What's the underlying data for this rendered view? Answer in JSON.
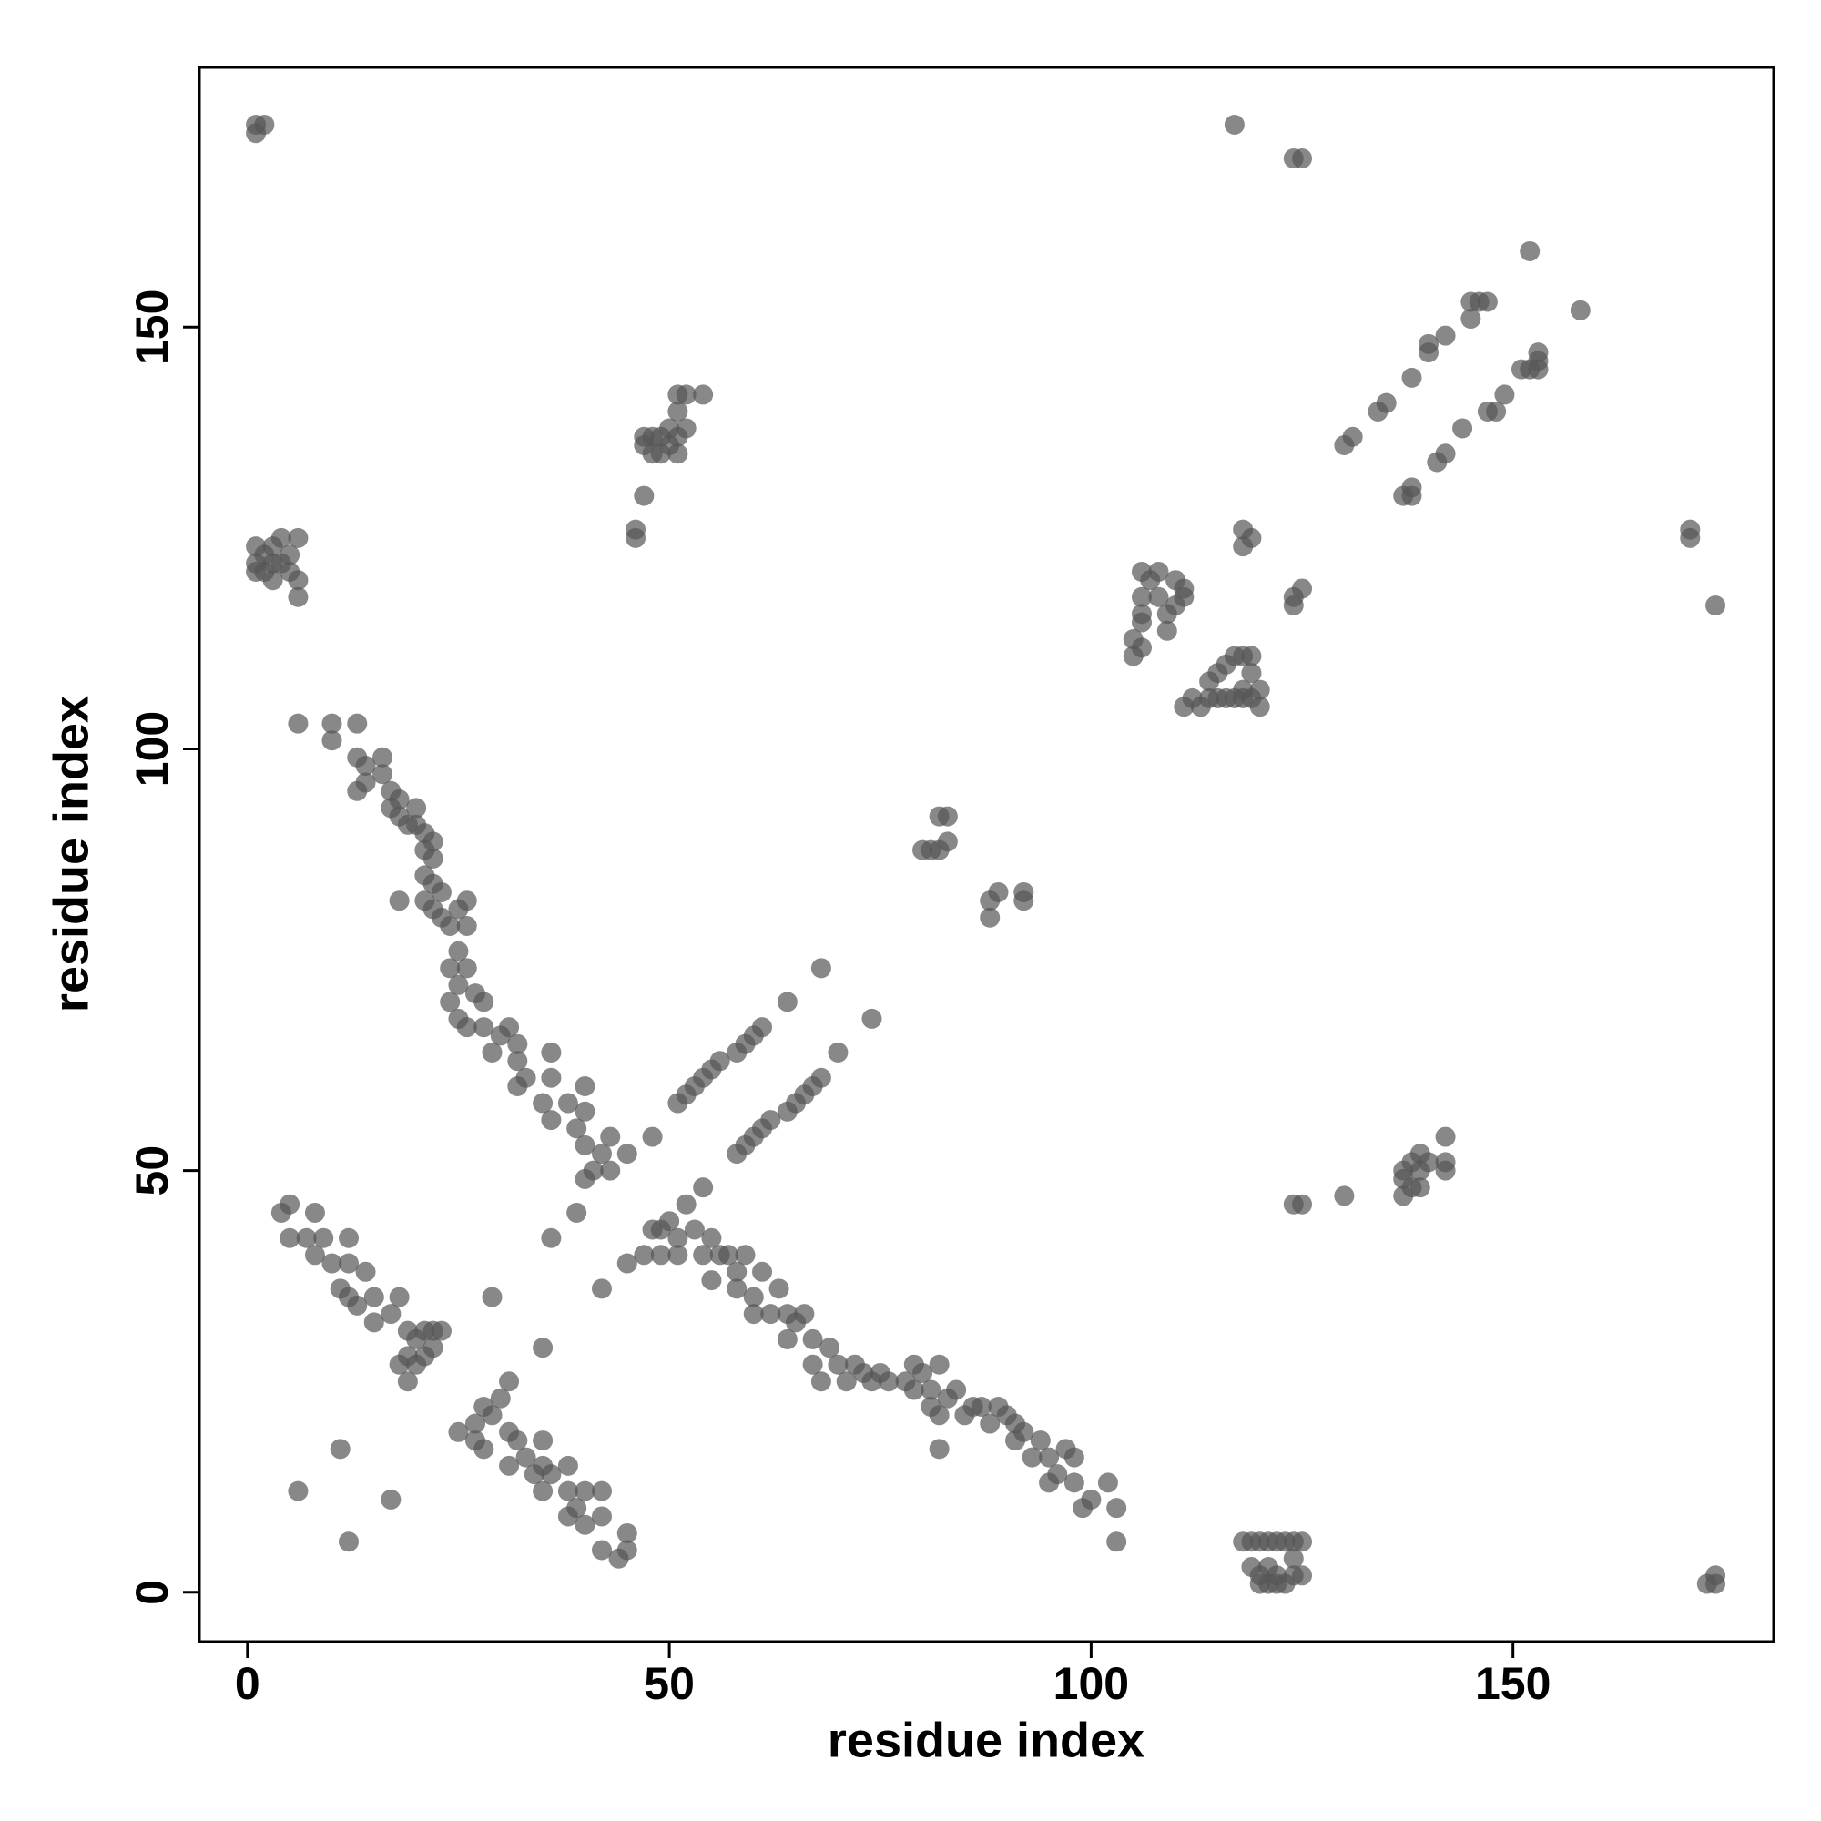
{
  "chart_data": {
    "type": "scatter",
    "x_label": "residue index",
    "y_label": "residue index",
    "xlim": [
      -5.7,
      180.9
    ],
    "ylim": [
      -5.85,
      180.8
    ],
    "xticks": [
      0,
      50,
      100,
      150
    ],
    "yticks": [
      0,
      50,
      100,
      150
    ],
    "grid": false,
    "x": [
      1,
      2,
      1,
      1,
      1,
      2,
      2,
      3,
      3,
      4,
      4,
      5,
      5,
      6,
      6,
      6,
      1,
      3,
      6,
      10,
      10,
      13,
      13,
      14,
      14,
      13,
      16,
      16,
      17,
      17,
      18,
      18,
      19,
      20,
      20,
      21,
      21,
      22,
      22,
      21,
      22,
      21,
      22,
      23,
      23,
      24,
      25,
      26,
      26,
      25,
      26,
      24,
      25,
      24,
      25,
      26,
      27,
      28,
      28,
      29,
      30,
      31,
      32,
      32,
      32,
      33,
      36,
      35,
      36,
      38,
      39,
      40,
      40,
      41,
      40,
      42,
      43,
      43,
      45,
      18,
      36,
      40,
      4,
      5,
      5,
      7,
      8,
      8,
      9,
      10,
      12,
      12,
      11,
      12,
      14,
      13,
      15,
      15,
      17,
      18,
      19,
      19,
      20,
      21,
      22,
      23,
      21,
      20,
      22,
      18,
      19,
      25,
      27,
      28,
      27,
      29,
      30,
      31,
      31,
      32,
      31,
      33,
      34,
      35,
      35,
      35,
      36,
      38,
      38,
      39,
      40,
      38,
      40,
      42,
      42,
      42,
      45,
      45,
      44,
      28,
      11,
      6,
      17,
      12,
      29,
      35,
      36,
      39,
      42,
      45,
      48,
      54,
      48,
      49,
      50,
      51,
      52,
      51,
      53,
      54,
      55,
      55,
      56,
      57,
      58,
      58,
      59,
      60,
      60,
      61,
      62,
      63,
      64,
      64,
      65,
      66,
      67,
      67,
      68,
      69,
      70,
      71,
      72,
      73,
      74,
      75,
      76,
      78,
      79,
      79,
      80,
      81,
      81,
      82,
      82,
      83,
      84,
      85,
      86,
      87,
      88,
      89,
      90,
      91,
      91,
      92,
      93,
      94,
      95,
      95,
      96,
      97,
      98,
      98,
      99,
      100,
      102,
      103,
      103,
      82,
      47,
      49,
      51,
      52,
      53,
      54,
      55,
      56,
      58,
      59,
      60,
      61,
      64,
      68,
      58,
      59,
      60,
      61,
      62,
      64,
      65,
      66,
      67,
      68,
      70,
      74,
      46,
      46,
      47,
      47,
      47,
      48,
      48,
      49,
      50,
      50,
      51,
      51,
      52,
      51,
      52,
      54,
      49,
      51,
      80,
      81,
      82,
      83,
      82,
      83,
      88,
      89,
      88,
      92,
      92,
      105,
      105,
      106,
      106,
      106,
      107,
      106,
      108,
      108,
      109,
      110,
      110,
      111,
      111,
      109,
      106,
      111,
      112,
      113,
      114,
      115,
      116,
      117,
      118,
      119,
      120,
      120,
      118,
      115,
      116,
      117,
      118,
      119,
      119,
      114,
      117,
      124,
      125,
      118,
      119,
      118,
      124,
      125,
      124,
      130,
      131,
      134,
      135,
      138,
      140,
      140,
      142,
      145,
      145,
      146,
      147,
      152,
      158,
      137,
      138,
      138,
      141,
      142,
      144,
      147,
      148,
      149,
      151,
      152,
      153,
      153,
      153,
      171,
      171,
      174,
      124,
      125,
      130,
      137,
      137,
      137,
      138,
      138,
      139,
      139,
      140,
      142,
      142,
      142,
      139,
      118,
      119,
      120,
      121,
      122,
      123,
      124,
      125,
      119,
      120,
      120,
      121,
      122,
      122,
      123,
      124,
      125,
      124,
      121,
      173,
      174,
      174
    ],
    "series": [
      {
        "color": "#555555",
        "alpha": 0.7,
        "values": [
          174,
          174,
          173,
          122,
          121,
          123,
          121,
          120,
          124,
          122,
          125,
          123,
          121,
          125,
          120,
          118,
          124,
          122,
          103,
          103,
          101,
          103,
          99,
          98,
          96,
          95,
          99,
          97,
          95,
          93,
          94,
          92,
          91,
          93,
          91,
          90,
          88,
          89,
          87,
          85,
          84,
          82,
          81,
          83,
          80,
          79,
          81,
          82,
          79,
          76,
          74,
          74,
          72,
          70,
          68,
          67,
          71,
          70,
          67,
          64,
          66,
          67,
          65,
          63,
          60,
          61,
          61,
          58,
          56,
          58,
          55,
          57,
          53,
          50,
          49,
          52,
          54,
          50,
          52,
          82,
          64,
          60,
          45,
          46,
          42,
          42,
          45,
          40,
          42,
          39,
          42,
          39,
          36,
          35,
          38,
          34,
          35,
          32,
          33,
          35,
          31,
          28,
          30,
          31,
          31,
          31,
          28,
          27,
          29,
          27,
          25,
          19,
          20,
          22,
          18,
          21,
          23,
          25,
          19,
          18,
          15,
          16,
          14,
          15,
          18,
          12,
          14,
          15,
          12,
          10,
          12,
          9,
          8,
          9,
          5,
          12,
          7,
          5,
          4,
          17,
          17,
          12,
          11,
          6,
          35,
          29,
          42,
          45,
          36,
          39,
          54,
          48,
          43,
          43,
          44,
          42,
          46,
          40,
          43,
          40,
          42,
          37,
          40,
          40,
          38,
          36,
          40,
          35,
          33,
          38,
          33,
          36,
          33,
          30,
          32,
          33,
          30,
          27,
          25,
          29,
          27,
          25,
          27,
          26,
          25,
          26,
          25,
          25,
          27,
          24,
          26,
          24,
          22,
          27,
          21,
          23,
          24,
          21,
          22,
          22,
          20,
          22,
          21,
          20,
          18,
          19,
          16,
          18,
          16,
          13,
          14,
          17,
          16,
          13,
          10,
          11,
          13,
          10,
          6,
          17,
          40,
          40,
          58,
          59,
          60,
          61,
          62,
          63,
          64,
          65,
          66,
          67,
          70,
          74,
          52,
          53,
          54,
          55,
          56,
          57,
          58,
          59,
          60,
          61,
          64,
          68,
          126,
          125,
          130,
          136,
          137,
          137,
          135,
          137,
          136,
          138,
          137,
          140,
          138,
          142,
          142,
          142,
          135,
          135,
          88,
          88,
          88,
          89,
          92,
          92,
          82,
          83,
          80,
          83,
          82,
          111,
          113,
          112,
          115,
          118,
          120,
          121,
          121,
          118,
          116,
          117,
          120,
          118,
          119,
          114,
          116,
          105,
          106,
          105,
          106,
          106,
          106,
          106,
          106,
          106,
          105,
          107,
          107,
          109,
          110,
          111,
          111,
          111,
          109,
          108,
          174,
          170,
          170,
          124,
          125,
          126,
          118,
          119,
          117,
          136,
          137,
          140,
          141,
          144,
          147,
          148,
          149,
          151,
          153,
          153,
          153,
          159,
          152,
          130,
          131,
          130,
          134,
          135,
          138,
          140,
          140,
          142,
          145,
          145,
          146,
          147,
          145,
          126,
          125,
          117,
          46,
          46,
          47,
          47,
          49,
          50,
          48,
          51,
          50,
          52,
          51,
          50,
          51,
          54,
          48,
          6,
          6,
          6,
          6,
          6,
          6,
          6,
          6,
          3,
          2,
          1,
          3,
          2,
          1,
          1,
          2,
          2,
          4,
          1,
          1,
          2,
          1
        ]
      }
    ]
  }
}
